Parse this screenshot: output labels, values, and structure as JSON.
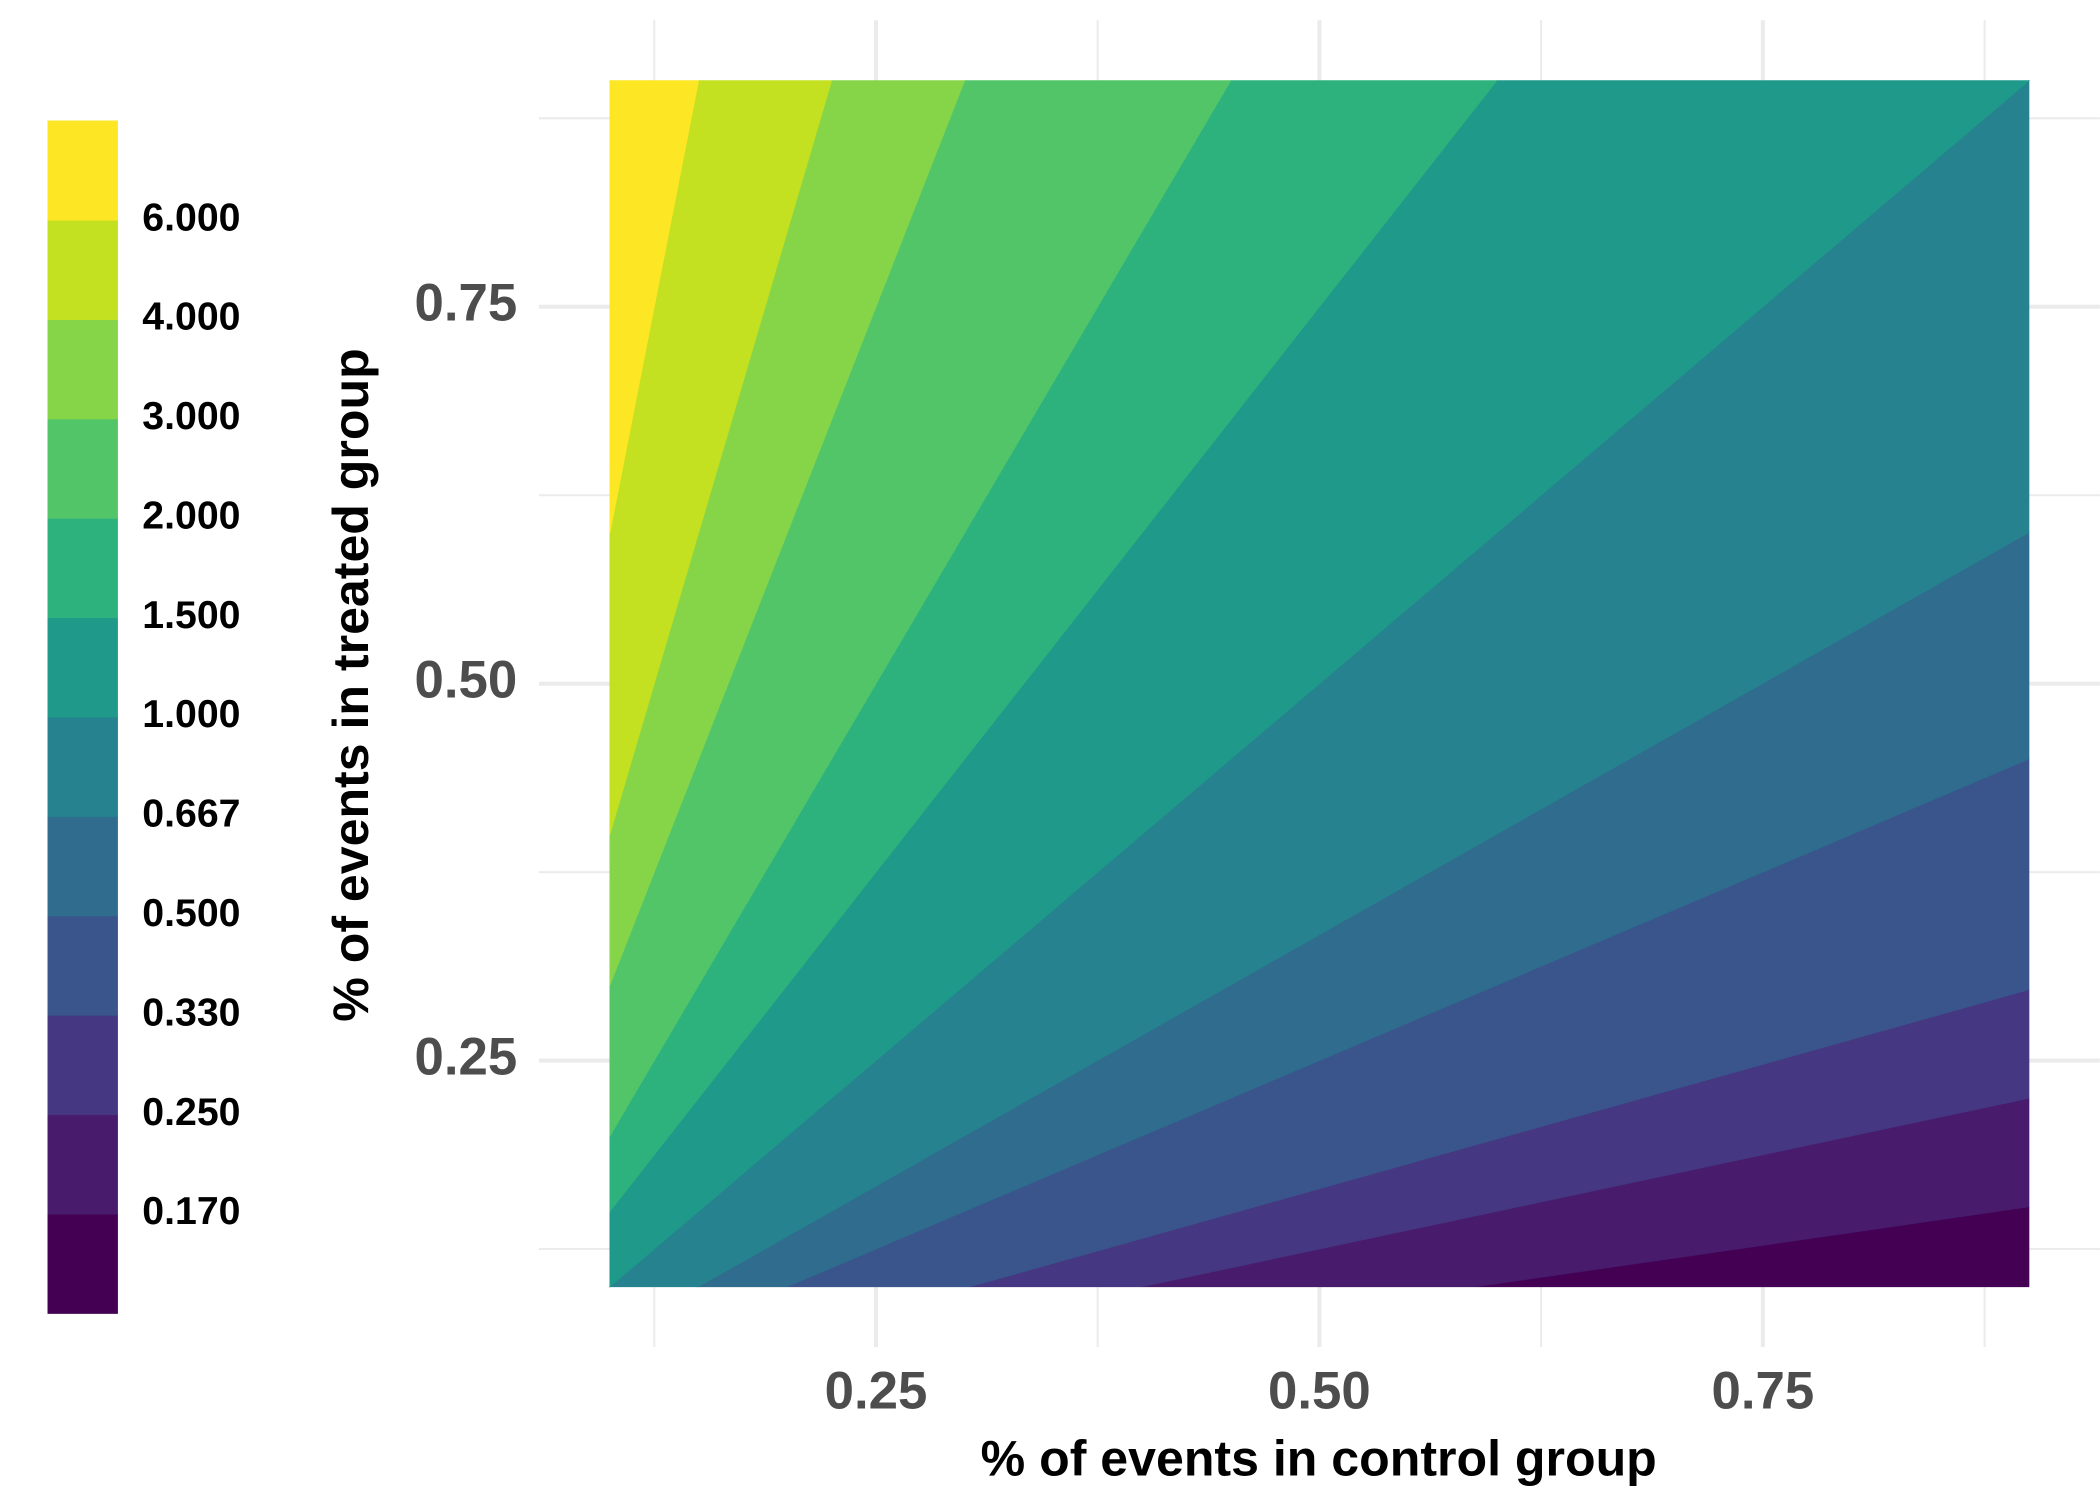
{
  "chart_data": {
    "type": "contour",
    "x_label": "% of events in control group",
    "y_label": "% of events in treated group",
    "x": [
      0.1,
      0.9
    ],
    "y": [
      0.1,
      0.9
    ],
    "xlim": [
      0.06,
      0.94
    ],
    "ylim": [
      0.06,
      0.94
    ],
    "xticks": [
      0.25,
      {
        "value": 0.5,
        "label": "0.50"
      },
      0.75
    ],
    "yticks": [
      0.25,
      {
        "value": 0.5,
        "label": "0.50"
      },
      0.75
    ],
    "xminor": [
      0.125,
      0.375,
      0.625,
      0.875
    ],
    "yminor": [
      0.125,
      0.375,
      0.625,
      0.875
    ],
    "grid": true,
    "levels": [
      {
        "value": 0.17,
        "label": "0.170"
      },
      {
        "value": 0.25,
        "label": "0.250"
      },
      {
        "value": 0.33,
        "label": "0.330"
      },
      {
        "value": 0.5,
        "label": "0.500"
      },
      0.667,
      {
        "value": 1,
        "label": "1.000"
      },
      {
        "value": 1.5,
        "label": "1.500"
      },
      {
        "value": 2,
        "label": "2.000"
      },
      {
        "value": 3,
        "label": "3.000"
      },
      {
        "value": 4,
        "label": "4.000"
      },
      {
        "value": 6,
        "label": "6.000"
      }
    ],
    "colors": [
      "#440154",
      "#481b6d",
      "#453781",
      "#3a548c",
      "#2f6c8e",
      "#26828e",
      "#1f998a",
      "#2db27d",
      "#52c569",
      "#86d549",
      "#c3e021",
      "#fde725"
    ],
    "legend_position": "left"
  }
}
